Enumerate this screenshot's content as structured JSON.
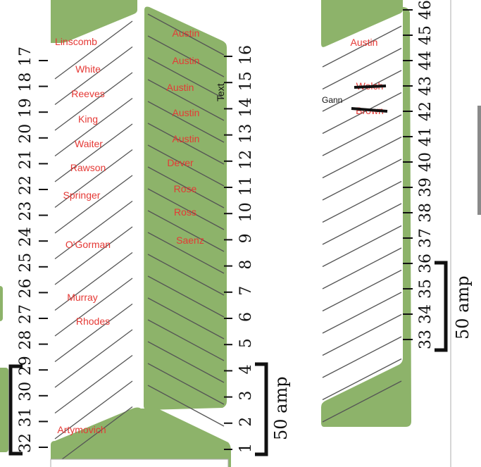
{
  "colors": {
    "green": "#8db36a",
    "label": "#e53935",
    "ink": "#111111",
    "line": "#555555",
    "rail": "#c9c9c9"
  },
  "stall_numbers": {
    "left_column": [
      "17",
      "18",
      "19",
      "20",
      "21",
      "22",
      "23",
      "24",
      "25",
      "26",
      "27",
      "28",
      "29",
      "30",
      "31",
      "32"
    ],
    "center_column": [
      "16",
      "15",
      "14",
      "13",
      "12",
      "11",
      "10",
      "9",
      "8",
      "7",
      "6",
      "5",
      "4",
      "3",
      "2",
      "1"
    ],
    "right_column": [
      "46",
      "45",
      "44",
      "43",
      "42",
      "41",
      "40",
      "39",
      "38",
      "37",
      "36",
      "35",
      "34",
      "33"
    ]
  },
  "names": {
    "left_row": [
      "Linscomb",
      "White",
      "Reeves",
      "King",
      "Waiter",
      "Rawson",
      "Springer",
      "O'Gorman",
      "Murray",
      "Rhodes",
      "Artymovich"
    ],
    "center_row": [
      "Austin",
      "Austin",
      "Austin",
      "Austin",
      "Austin",
      "Dever",
      "Rose",
      "Ross",
      "Saenz"
    ],
    "right_row": [
      "Austin",
      "Welch",
      "Brown"
    ]
  },
  "annotations": {
    "gann": "Gann",
    "text_label": "Text"
  },
  "amp_labels": {
    "center": "50 amp",
    "right": "50 amp"
  }
}
